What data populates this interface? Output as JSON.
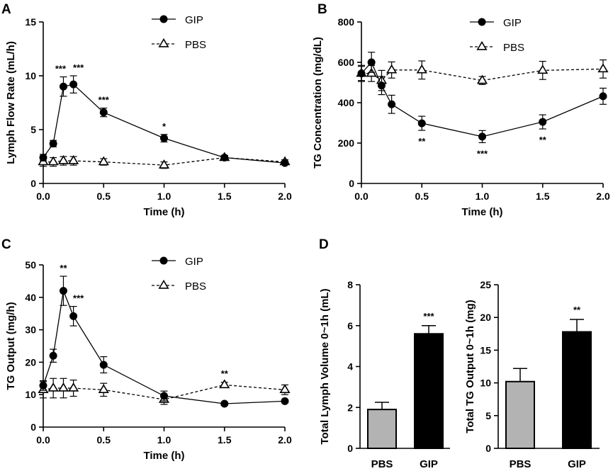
{
  "colors": {
    "gip_bar": "#000000",
    "pbs_bar": "#b3b3b3",
    "line": "#000000",
    "open_marker": "#ffffff"
  },
  "chart_data": [
    {
      "panel": "A",
      "type": "line",
      "xlabel": "Time (h)",
      "ylabel": "Lymph Flow Rate (mL/h)",
      "xlim": [
        0,
        2
      ],
      "ylim": [
        0,
        15
      ],
      "xticks": [
        "0.0",
        "0.5",
        "1.0",
        "1.5",
        "2.0"
      ],
      "yticks": [
        "0",
        "5",
        "10",
        "15"
      ],
      "x": [
        0,
        0.083,
        0.167,
        0.25,
        0.5,
        1.0,
        1.5,
        2.0
      ],
      "series": [
        {
          "name": "GIP",
          "marker": "filled-circle",
          "style": "solid",
          "values": [
            2.4,
            3.7,
            9.0,
            9.2,
            6.6,
            4.2,
            2.4,
            1.9
          ],
          "errors": [
            0.3,
            0.3,
            0.9,
            0.8,
            0.4,
            0.35,
            0.2,
            0.15
          ]
        },
        {
          "name": "PBS",
          "marker": "open-triangle",
          "style": "dashed",
          "values": [
            2.0,
            2.0,
            2.1,
            2.1,
            2.0,
            1.7,
            2.4,
            2.0
          ],
          "errors": [
            0.4,
            0.4,
            0.4,
            0.4,
            0.3,
            0.3,
            0.2,
            0.2
          ]
        }
      ],
      "annotations": [
        {
          "x": 0.167,
          "text": "***"
        },
        {
          "x": 0.25,
          "text": "***"
        },
        {
          "x": 0.5,
          "text": "***"
        },
        {
          "x": 1.0,
          "text": "*"
        }
      ],
      "legend": [
        "GIP",
        "PBS"
      ]
    },
    {
      "panel": "B",
      "type": "line",
      "xlabel": "Time (h)",
      "ylabel": "TG Concentration (mg/dL)",
      "xlim": [
        0,
        2
      ],
      "ylim": [
        0,
        800
      ],
      "xticks": [
        "0.0",
        "0.5",
        "1.0",
        "1.5",
        "2.0"
      ],
      "yticks": [
        "0",
        "200",
        "400",
        "600",
        "800"
      ],
      "x": [
        0,
        0.083,
        0.167,
        0.25,
        0.5,
        1.0,
        1.5,
        2.0
      ],
      "series": [
        {
          "name": "GIP",
          "marker": "filled-circle",
          "style": "solid",
          "values": [
            545,
            600,
            485,
            392,
            298,
            232,
            305,
            432
          ],
          "errors": [
            40,
            50,
            45,
            45,
            35,
            30,
            35,
            40
          ]
        },
        {
          "name": "PBS",
          "marker": "open-triangle",
          "style": "dashed",
          "values": [
            545,
            545,
            510,
            562,
            562,
            510,
            560,
            567
          ],
          "errors": [
            35,
            40,
            50,
            40,
            45,
            20,
            45,
            45
          ]
        }
      ],
      "annotations": [
        {
          "x": 0.5,
          "text": "**"
        },
        {
          "x": 1.0,
          "text": "***"
        },
        {
          "x": 1.5,
          "text": "**"
        }
      ],
      "legend": [
        "GIP",
        "PBS"
      ]
    },
    {
      "panel": "C",
      "type": "line",
      "xlabel": "Time (h)",
      "ylabel": "TG Output (mg/h)",
      "xlim": [
        0,
        2
      ],
      "ylim": [
        0,
        50
      ],
      "xticks": [
        "0.0",
        "0.5",
        "1.0",
        "1.5",
        "2.0"
      ],
      "yticks": [
        "0",
        "10",
        "20",
        "30",
        "40",
        "50"
      ],
      "x": [
        0,
        0.083,
        0.167,
        0.25,
        0.5,
        1.0,
        1.5,
        2.0
      ],
      "series": [
        {
          "name": "GIP",
          "marker": "filled-circle",
          "style": "solid",
          "values": [
            12.8,
            22.0,
            42.0,
            34.2,
            19.2,
            9.6,
            7.2,
            8.0
          ],
          "errors": [
            1.5,
            2.0,
            4.5,
            3.0,
            2.5,
            1.5,
            0.5,
            0.5
          ]
        },
        {
          "name": "PBS",
          "marker": "open-triangle",
          "style": "dashed",
          "values": [
            11.5,
            12.0,
            12.0,
            12.0,
            11.5,
            8.5,
            13.0,
            11.5
          ],
          "errors": [
            2.5,
            3.0,
            3.0,
            2.5,
            2.0,
            1.5,
            0.8,
            1.5
          ]
        }
      ],
      "annotations": [
        {
          "x": 0.167,
          "text": "**"
        },
        {
          "x": 0.25,
          "text": "***"
        },
        {
          "x": 1.5,
          "text": "**"
        }
      ],
      "legend": [
        "GIP",
        "PBS"
      ]
    },
    {
      "panel": "D",
      "type": "bar",
      "xlabel": "",
      "ylabel": "Total Lymph Volume 0~1h (mL)",
      "ylim": [
        0,
        8
      ],
      "yticks": [
        "0",
        "2",
        "4",
        "6",
        "8"
      ],
      "categories": [
        "PBS",
        "GIP"
      ],
      "values": [
        1.9,
        5.6
      ],
      "errors": [
        0.35,
        0.4
      ],
      "annotations": [
        {
          "category": "GIP",
          "text": "***"
        }
      ]
    },
    {
      "panel": "",
      "type": "bar",
      "xlabel": "",
      "ylabel": "Total TG Output 0~1h (mg)",
      "ylim": [
        0,
        25
      ],
      "yticks": [
        "0",
        "5",
        "10",
        "15",
        "20",
        "25"
      ],
      "categories": [
        "PBS",
        "GIP"
      ],
      "values": [
        10.2,
        17.8
      ],
      "errors": [
        2.0,
        1.9
      ],
      "annotations": [
        {
          "category": "GIP",
          "text": "**"
        }
      ]
    }
  ]
}
